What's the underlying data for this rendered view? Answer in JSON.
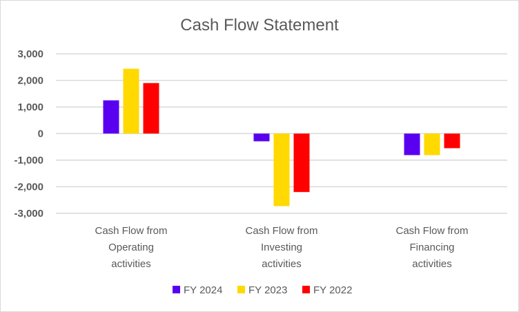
{
  "chart_data": {
    "type": "bar",
    "title": "Cash Flow Statement",
    "categories": [
      [
        "Cash Flow from",
        "Operating",
        "activities"
      ],
      [
        "Cash Flow from",
        "Investing",
        "activities"
      ],
      [
        "Cash Flow from",
        "Financing",
        "activities"
      ]
    ],
    "series": [
      {
        "name": "FY 2024",
        "color": "#5A00F0",
        "values": [
          1250,
          -290,
          -810
        ]
      },
      {
        "name": "FY 2023",
        "color": "#FFD900",
        "values": [
          2440,
          -2730,
          -810
        ]
      },
      {
        "name": "FY 2022",
        "color": "#FF0000",
        "values": [
          1900,
          -2200,
          -550
        ]
      }
    ],
    "ylim": [
      -3000,
      3000
    ],
    "yticks": [
      3000,
      2000,
      1000,
      0,
      -1000,
      -2000,
      -3000
    ],
    "ytick_labels": [
      "3,000",
      "2,000",
      "1,000",
      "0",
      "-1,000",
      "-2,000",
      "-3,000"
    ],
    "grid": true,
    "legend": "bottom",
    "xlabel": "",
    "ylabel": ""
  }
}
